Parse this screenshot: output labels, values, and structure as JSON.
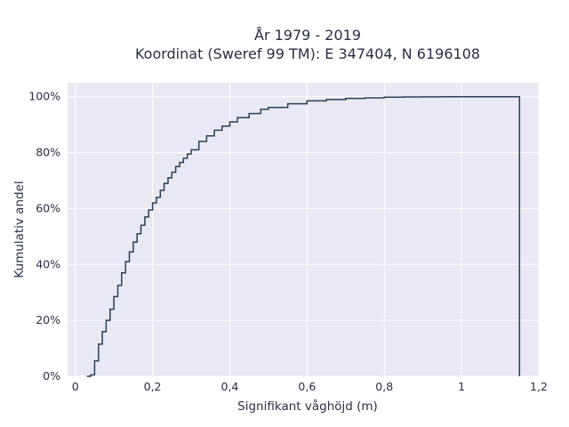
{
  "chart_data": {
    "type": "line",
    "step": true,
    "title_line1": "År 1979 - 2019",
    "title_line2": "Koordinat (Sweref 99 TM): E 347404, N 6196108",
    "xlabel": "Signifikant våghöjd (m)",
    "ylabel": "Kumulativ andel",
    "xlim": [
      -0.02,
      1.2
    ],
    "ylim": [
      0,
      1.05
    ],
    "x_ticks": [
      {
        "value": 0,
        "label": "0"
      },
      {
        "value": 0.2,
        "label": "0,2"
      },
      {
        "value": 0.4,
        "label": "0,4"
      },
      {
        "value": 0.6,
        "label": "0,6"
      },
      {
        "value": 0.8,
        "label": "0,8"
      },
      {
        "value": 1.0,
        "label": "1"
      },
      {
        "value": 1.2,
        "label": "1,2"
      }
    ],
    "y_ticks": [
      {
        "value": 0,
        "label": "0%"
      },
      {
        "value": 0.2,
        "label": "20%"
      },
      {
        "value": 0.4,
        "label": "40%"
      },
      {
        "value": 0.6,
        "label": "60%"
      },
      {
        "value": 0.8,
        "label": "80%"
      },
      {
        "value": 1.0,
        "label": "100%"
      }
    ],
    "grid": true,
    "series": [
      {
        "color": "#2a3f54",
        "x": [
          0.03,
          0.04,
          0.05,
          0.06,
          0.07,
          0.08,
          0.09,
          0.1,
          0.11,
          0.12,
          0.13,
          0.14,
          0.15,
          0.16,
          0.17,
          0.18,
          0.19,
          0.2,
          0.21,
          0.22,
          0.23,
          0.24,
          0.25,
          0.26,
          0.27,
          0.28,
          0.29,
          0.3,
          0.32,
          0.34,
          0.36,
          0.38,
          0.4,
          0.42,
          0.45,
          0.48,
          0.5,
          0.55,
          0.6,
          0.65,
          0.7,
          0.75,
          0.8,
          0.85,
          0.9,
          0.95,
          1.0,
          1.05,
          1.1,
          1.15
        ],
        "y": [
          0.0,
          0.005,
          0.055,
          0.115,
          0.16,
          0.2,
          0.24,
          0.285,
          0.325,
          0.37,
          0.41,
          0.445,
          0.48,
          0.51,
          0.54,
          0.57,
          0.595,
          0.62,
          0.64,
          0.665,
          0.69,
          0.71,
          0.73,
          0.75,
          0.765,
          0.78,
          0.795,
          0.81,
          0.84,
          0.86,
          0.88,
          0.895,
          0.91,
          0.925,
          0.94,
          0.955,
          0.962,
          0.975,
          0.985,
          0.99,
          0.994,
          0.996,
          0.998,
          0.999,
          0.9995,
          0.9998,
          1.0,
          1.0,
          1.0,
          1.0
        ]
      }
    ]
  }
}
